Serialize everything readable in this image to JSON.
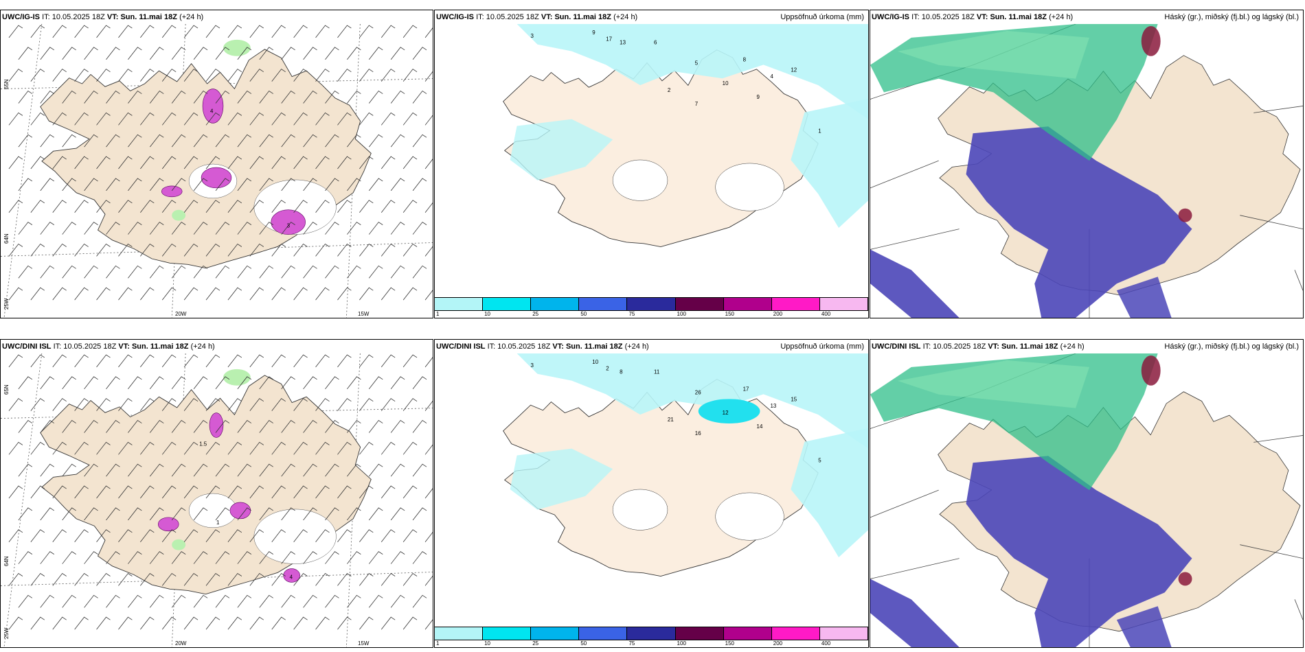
{
  "rows": [
    {
      "model": "UWC/IG-IS",
      "it_label": "IT:",
      "it_value": "10.05.2025 18Z",
      "vt_label": "VT:",
      "vt_value": "Sun. 11.mai 18Z",
      "lead": "(+24 h)"
    },
    {
      "model": "UWC/DINI ISL",
      "it_label": "IT:",
      "it_value": "10.05.2025 18Z",
      "vt_label": "VT:",
      "vt_value": "Sun. 11.mai 18Z",
      "lead": "(+24 h)"
    }
  ],
  "precip_title": "Uppsöfnuð úrkoma (mm)",
  "cloud_title": "Háský (gr.), miðský (fj.bl.) og lágský (bl.)",
  "axis_labels": {
    "lat65": "65N",
    "lat64": "64N",
    "lon25": "25W",
    "lon20": "20W",
    "lon15": "15W"
  },
  "colorbar": {
    "colors": [
      "#b3f5f7",
      "#00e5f0",
      "#00b4ec",
      "#3a63e6",
      "#2a2a9c",
      "#650048",
      "#b0008c",
      "#ff1ac6",
      "#f7b8f0"
    ],
    "labels": [
      "1",
      "10",
      "25",
      "50",
      "75",
      "100",
      "150",
      "200",
      "400"
    ]
  },
  "colors": {
    "land": "#f3e4d0",
    "precip_light": "#b8f5f8",
    "precip_med": "#22e0ee",
    "wind_magenta": "#d55ad3",
    "wind_green": "#b9f0b0",
    "cloud_blue": "#4b46b8",
    "cloud_green": "#2fbf8a",
    "cloud_red": "#8a1a3c"
  },
  "precip_numbers": {
    "top": [
      "3",
      "9",
      "17",
      "13",
      "6",
      "5",
      "8",
      "4",
      "2",
      "10",
      "9",
      "7",
      "12",
      "1"
    ],
    "bottom": [
      "3",
      "10",
      "2",
      "8",
      "11",
      "26",
      "17",
      "13",
      "21",
      "12",
      "14",
      "16",
      "15",
      "5"
    ]
  },
  "wind_numbers": {
    "top": [
      "4",
      "3"
    ],
    "bottom": [
      "1.5",
      "1",
      "4"
    ]
  }
}
